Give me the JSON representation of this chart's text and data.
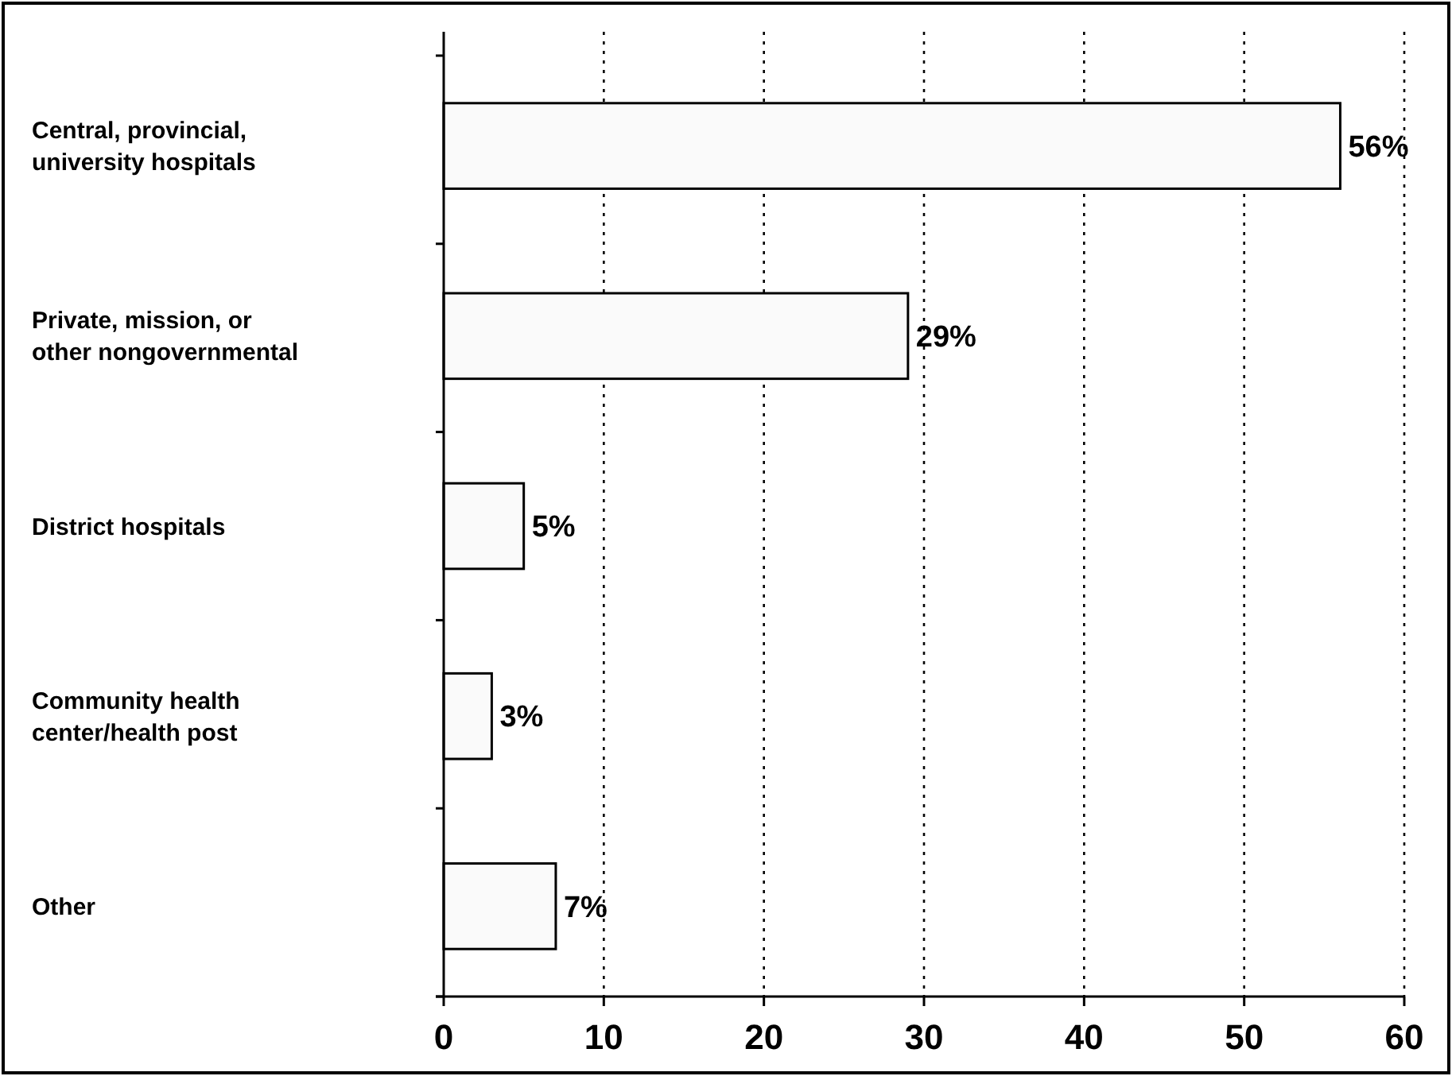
{
  "chart_data": {
    "type": "bar",
    "orientation": "horizontal",
    "categories": [
      "Central, provincial, university hospitals",
      "Private, mission, or other nongovernmental",
      "District hospitals",
      "Community health center/health post",
      "Other"
    ],
    "values": [
      56,
      29,
      5,
      3,
      7
    ],
    "value_labels": [
      "56%",
      "29%",
      "5%",
      "3%",
      "7%"
    ],
    "color": "#fafafa",
    "xlim": [
      0,
      60
    ],
    "xticks": [
      0,
      10,
      20,
      30,
      40,
      50,
      60
    ],
    "grid": "x"
  }
}
